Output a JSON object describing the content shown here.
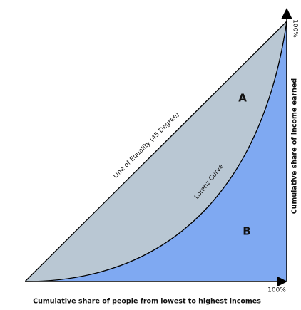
{
  "diagram": {
    "equality_line_label": "Line of Equality (45 Degree)",
    "lorenz_curve_label": "Lorenz Curve",
    "area_a_label": "A",
    "area_b_label": "B",
    "y_axis_max_label": "100%",
    "x_axis_max_label": "100%",
    "y_axis_title": "Cumulative share of income earned",
    "x_axis_title": "Cumulative share of people from lowest to highest incomes"
  }
}
